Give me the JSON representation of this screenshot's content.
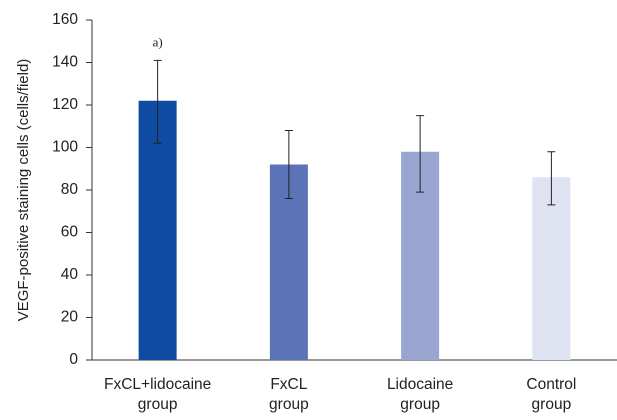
{
  "chart_data": {
    "type": "bar",
    "title": "",
    "xlabel": "",
    "ylabel": "VEGF-positive staining cells (cells/field)",
    "ylim": [
      0,
      160
    ],
    "yticks": [
      0,
      20,
      40,
      60,
      80,
      100,
      120,
      140,
      160
    ],
    "grid": false,
    "legend": "none",
    "categories": [
      [
        "FxCL+lidocaine",
        "group"
      ],
      [
        "FxCL",
        "group"
      ],
      [
        "Lidocaine",
        "group"
      ],
      [
        "Control",
        "group"
      ]
    ],
    "values": [
      122,
      92,
      98,
      86
    ],
    "error_low": [
      102,
      76,
      79,
      73
    ],
    "error_high": [
      141,
      108,
      115,
      98
    ],
    "colors": [
      "#0f4ba3",
      "#5c73b8",
      "#9aa6d2",
      "#dfe2f0"
    ],
    "annotations": [
      {
        "category_index": 0,
        "text": "a)"
      }
    ]
  }
}
